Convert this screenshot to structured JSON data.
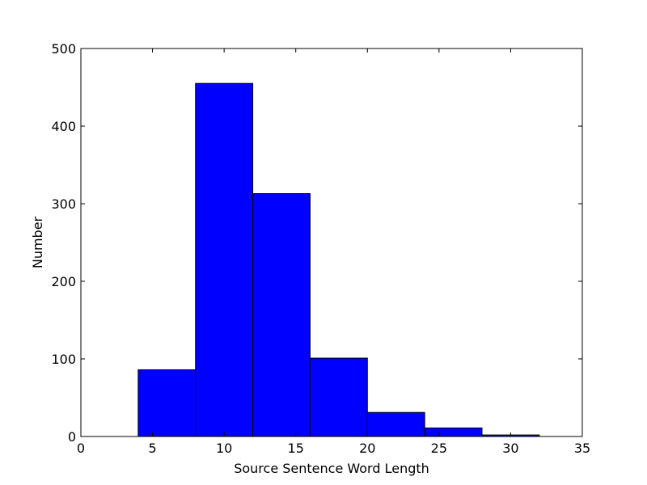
{
  "chart_data": {
    "type": "histogram",
    "x_label": "Source Sentence Word Length",
    "y_label": "Number",
    "bins": [
      4,
      8,
      12,
      16,
      20,
      24,
      28,
      32
    ],
    "values": [
      86,
      455,
      313,
      101,
      31,
      11,
      2
    ],
    "color": "#0000ff",
    "xlim": [
      0,
      35
    ],
    "xticks": [
      0,
      5,
      10,
      15,
      20,
      25,
      30,
      35
    ],
    "ylim": [
      0,
      500
    ],
    "yticks": [
      0,
      100,
      200,
      300,
      400,
      500
    ]
  }
}
